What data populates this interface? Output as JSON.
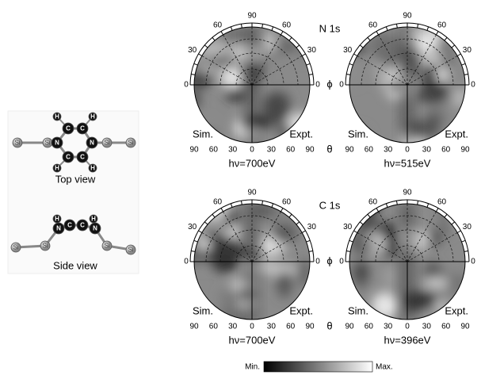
{
  "model": {
    "top_view_atoms": [
      "Si",
      "Si",
      "N",
      "H",
      "C",
      "H",
      "C",
      "N",
      "Si",
      "Si",
      "H",
      "C",
      "H",
      "C"
    ],
    "top_view_label": "Top view",
    "side_view_atoms": [
      "Si",
      "Si",
      "N",
      "H",
      "C",
      "C",
      "H",
      "N",
      "Si",
      "Si"
    ],
    "side_view_label": "Side view"
  },
  "phi_ticks": [
    90,
    60,
    30,
    0
  ],
  "theta_ticks": [
    90,
    60,
    30,
    0,
    30,
    60,
    90
  ],
  "phi_symbol": "ϕ",
  "theta_symbol": "θ",
  "sim_label": "Sim.",
  "expt_label": "Expt.",
  "rows": [
    {
      "level": "N 1s",
      "panels": [
        {
          "energy": "hν=700eV"
        },
        {
          "energy": "hν=515eV"
        }
      ]
    },
    {
      "level": "C 1s",
      "panels": [
        {
          "energy": "hν=700eV"
        },
        {
          "energy": "hν=396eV"
        }
      ]
    }
  ],
  "colorbar": {
    "min_label": "Min.",
    "max_label": "Max."
  }
}
